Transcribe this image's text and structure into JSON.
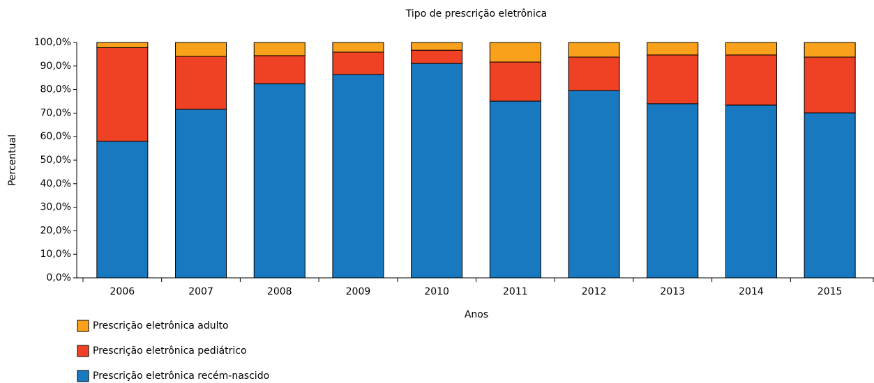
{
  "chart_data": {
    "type": "stacked_bar",
    "title": "Tipo de prescrição eletrônica",
    "x_label": "Anos",
    "y_label": "Percentual",
    "categories": [
      "2006",
      "2007",
      "2008",
      "2009",
      "2010",
      "2011",
      "2012",
      "2013",
      "2014",
      "2015"
    ],
    "series": [
      {
        "name": "Prescrição eletrônica recém-nascido",
        "color": "#1878c0",
        "values": [
          58.0,
          71.6,
          82.5,
          86.4,
          91.1,
          75.1,
          79.6,
          74.0,
          73.4,
          70.1
        ]
      },
      {
        "name": "Prescrição eletrônica pediátrico",
        "color": "#ef4123",
        "values": [
          39.8,
          22.5,
          11.9,
          9.5,
          5.6,
          16.6,
          14.2,
          20.7,
          21.3,
          23.7
        ]
      },
      {
        "name": "Prescrição eletrônica adulto",
        "color": "#f9a11b",
        "values": [
          2.2,
          5.9,
          5.6,
          4.1,
          3.3,
          8.3,
          6.2,
          5.3,
          5.3,
          6.2
        ]
      }
    ],
    "ylim": [
      0,
      100
    ],
    "yticks": [
      {
        "value": 0,
        "label": "0,0%"
      },
      {
        "value": 10,
        "label": "10,0%"
      },
      {
        "value": 20,
        "label": "20,0%"
      },
      {
        "value": 30,
        "label": "30,0%"
      },
      {
        "value": 40,
        "label": "40,0%"
      },
      {
        "value": 50,
        "label": "50,0%"
      },
      {
        "value": 60,
        "label": "60,0%"
      },
      {
        "value": 70,
        "label": "70,0%"
      },
      {
        "value": 80,
        "label": "80,0%"
      },
      {
        "value": 90,
        "label": "90,0%"
      },
      {
        "value": 100,
        "label": "100,0%"
      }
    ],
    "grid": false,
    "legend_position": "bottom-left"
  }
}
